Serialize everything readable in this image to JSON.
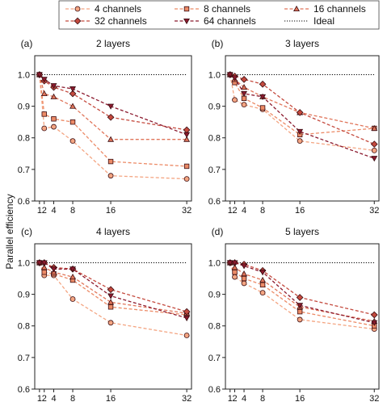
{
  "chart_data": {
    "type": "line",
    "ylabel": "Parallel efficiency",
    "legend": {
      "placement": "top",
      "items": [
        {
          "label": "4 channels",
          "color": "#F4A582",
          "marker": "circle"
        },
        {
          "label": "8 channels",
          "color": "#EC8A66",
          "marker": "square"
        },
        {
          "label": "16 channels",
          "color": "#E0755A",
          "marker": "triangle-up"
        },
        {
          "label": "32 channels",
          "color": "#C44A3E",
          "marker": "diamond"
        },
        {
          "label": "64 channels",
          "color": "#8B1A2E",
          "marker": "triangle-down"
        },
        {
          "label": "Ideal",
          "color": "#000000",
          "marker": "none",
          "dotted": true
        }
      ]
    },
    "x_ticks": [
      1,
      2,
      4,
      8,
      16,
      32
    ],
    "x_tick_labels": [
      "1",
      "2",
      "4",
      "8",
      "16",
      "32"
    ],
    "xlim": [
      0,
      33
    ],
    "y_ticks": [
      0.6,
      0.7,
      0.8,
      0.9,
      1.0
    ],
    "y_tick_labels": [
      "0.6",
      "0.7",
      "0.8",
      "0.9",
      "1.0"
    ],
    "ylim": [
      0.6,
      1.06
    ],
    "ideal": 1.0,
    "panels": [
      {
        "tag": "(a)",
        "title": "2 layers",
        "series": [
          {
            "name": "4 channels",
            "x": [
              1,
              2,
              4,
              8,
              16,
              32
            ],
            "values": [
              1.0,
              0.83,
              0.835,
              0.79,
              0.68,
              0.67
            ]
          },
          {
            "name": "8 channels",
            "x": [
              1,
              2,
              4,
              8,
              16,
              32
            ],
            "values": [
              1.0,
              0.875,
              0.86,
              0.85,
              0.725,
              0.71
            ]
          },
          {
            "name": "16 channels",
            "x": [
              1,
              2,
              4,
              8,
              16,
              32
            ],
            "values": [
              1.0,
              0.94,
              0.93,
              0.9,
              0.795,
              0.795
            ]
          },
          {
            "name": "32 channels",
            "x": [
              1,
              2,
              4,
              8,
              16,
              32
            ],
            "values": [
              1.0,
              0.98,
              0.96,
              0.94,
              0.865,
              0.825
            ]
          },
          {
            "name": "64 channels",
            "x": [
              1,
              2,
              4,
              8,
              16,
              32
            ],
            "values": [
              1.0,
              0.985,
              0.965,
              0.955,
              0.9,
              0.81
            ]
          }
        ]
      },
      {
        "tag": "(b)",
        "title": "3 layers",
        "series": [
          {
            "name": "4 channels",
            "x": [
              1,
              2,
              4,
              8,
              16,
              32
            ],
            "values": [
              1.0,
              0.92,
              0.905,
              0.89,
              0.79,
              0.76
            ]
          },
          {
            "name": "8 channels",
            "x": [
              1,
              2,
              4,
              8,
              16,
              32
            ],
            "values": [
              1.0,
              0.975,
              0.925,
              0.895,
              0.81,
              0.83
            ]
          },
          {
            "name": "16 channels",
            "x": [
              1,
              2,
              4,
              8,
              16,
              32
            ],
            "values": [
              1.0,
              0.985,
              0.96,
              0.93,
              0.88,
              0.83
            ]
          },
          {
            "name": "32 channels",
            "x": [
              1,
              2,
              4,
              8,
              16,
              32
            ],
            "values": [
              1.0,
              0.995,
              0.985,
              0.97,
              0.88,
              0.78
            ]
          },
          {
            "name": "64 channels",
            "x": [
              1,
              2,
              4,
              8,
              16,
              32
            ],
            "values": [
              1.0,
              0.99,
              0.94,
              0.93,
              0.82,
              0.735
            ]
          }
        ]
      },
      {
        "tag": "(c)",
        "title": "4 layers",
        "series": [
          {
            "name": "4 channels",
            "x": [
              1,
              2,
              4,
              8,
              16,
              32
            ],
            "values": [
              1.0,
              0.96,
              0.96,
              0.885,
              0.81,
              0.77
            ]
          },
          {
            "name": "8 channels",
            "x": [
              1,
              2,
              4,
              8,
              16,
              32
            ],
            "values": [
              1.0,
              0.97,
              0.965,
              0.945,
              0.86,
              0.835
            ]
          },
          {
            "name": "16 channels",
            "x": [
              1,
              2,
              4,
              8,
              16,
              32
            ],
            "values": [
              1.0,
              0.985,
              0.97,
              0.955,
              0.875,
              0.84
            ]
          },
          {
            "name": "32 channels",
            "x": [
              1,
              2,
              4,
              8,
              16,
              32
            ],
            "values": [
              1.0,
              1.0,
              0.985,
              0.98,
              0.915,
              0.845
            ]
          },
          {
            "name": "64 channels",
            "x": [
              1,
              2,
              4,
              8,
              16,
              32
            ],
            "values": [
              1.0,
              1.0,
              0.98,
              0.98,
              0.895,
              0.825
            ]
          }
        ]
      },
      {
        "tag": "(d)",
        "title": "5 layers",
        "series": [
          {
            "name": "4 channels",
            "x": [
              1,
              2,
              4,
              8,
              16,
              32
            ],
            "values": [
              1.0,
              0.955,
              0.935,
              0.905,
              0.82,
              0.79
            ]
          },
          {
            "name": "8 channels",
            "x": [
              1,
              2,
              4,
              8,
              16,
              32
            ],
            "values": [
              1.0,
              0.97,
              0.95,
              0.93,
              0.845,
              0.8
            ]
          },
          {
            "name": "16 channels",
            "x": [
              1,
              2,
              4,
              8,
              16,
              32
            ],
            "values": [
              1.0,
              0.985,
              0.965,
              0.945,
              0.86,
              0.815
            ]
          },
          {
            "name": "32 channels",
            "x": [
              1,
              2,
              4,
              8,
              16,
              32
            ],
            "values": [
              1.0,
              1.0,
              0.995,
              0.975,
              0.89,
              0.835
            ]
          },
          {
            "name": "64 channels",
            "x": [
              1,
              2,
              4,
              8,
              16,
              32
            ],
            "values": [
              1.0,
              1.0,
              0.99,
              0.97,
              0.865,
              0.81
            ]
          }
        ]
      }
    ]
  }
}
